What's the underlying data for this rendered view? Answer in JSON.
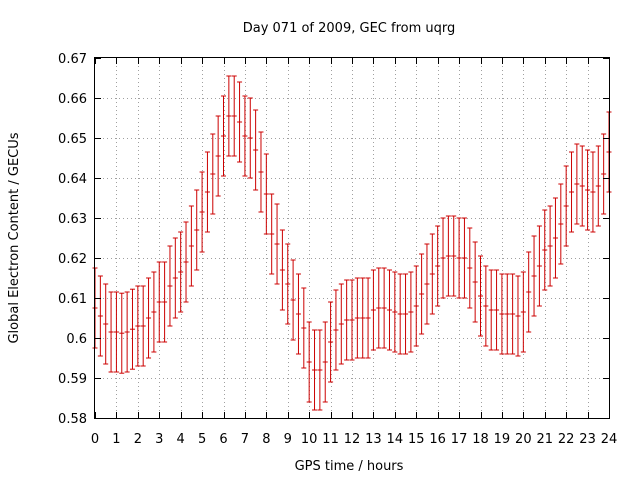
{
  "chart_data": {
    "type": "scatter",
    "title": "Day 071 of 2009, GEC from uqrg",
    "xlabel": "GPS time / hours",
    "ylabel": "Global Electron Content / GECUs",
    "xlim": [
      0,
      24
    ],
    "ylim": [
      0.58,
      0.67
    ],
    "xticks": [
      0,
      1,
      2,
      3,
      4,
      5,
      6,
      7,
      8,
      9,
      10,
      11,
      12,
      13,
      14,
      15,
      16,
      17,
      18,
      19,
      20,
      21,
      22,
      23,
      24
    ],
    "yticks": [
      0.58,
      0.59,
      0.6,
      0.61,
      0.62,
      0.63,
      0.64,
      0.65,
      0.66,
      0.67
    ],
    "ytick_labels": [
      "0.58",
      "0.59",
      "0.6",
      "0.61",
      "0.62",
      "0.63",
      "0.64",
      "0.65",
      "0.66",
      "0.67"
    ],
    "grid": true,
    "series": [
      {
        "name": "GEC",
        "color": "#cc0000",
        "error": 0.01,
        "points": [
          [
            0.0,
            0.6075
          ],
          [
            0.25,
            0.6055
          ],
          [
            0.5,
            0.6035
          ],
          [
            0.75,
            0.6015
          ],
          [
            1.0,
            0.6015
          ],
          [
            1.25,
            0.6012
          ],
          [
            1.5,
            0.6015
          ],
          [
            1.75,
            0.6022
          ],
          [
            2.0,
            0.603
          ],
          [
            2.25,
            0.603
          ],
          [
            2.5,
            0.605
          ],
          [
            2.75,
            0.6065
          ],
          [
            3.0,
            0.609
          ],
          [
            3.25,
            0.609
          ],
          [
            3.5,
            0.613
          ],
          [
            3.75,
            0.615
          ],
          [
            4.0,
            0.6165
          ],
          [
            4.25,
            0.619
          ],
          [
            4.5,
            0.623
          ],
          [
            4.75,
            0.627
          ],
          [
            5.0,
            0.6315
          ],
          [
            5.25,
            0.6365
          ],
          [
            5.5,
            0.641
          ],
          [
            5.75,
            0.6455
          ],
          [
            6.0,
            0.6505
          ],
          [
            6.25,
            0.6555
          ],
          [
            6.5,
            0.6555
          ],
          [
            6.75,
            0.654
          ],
          [
            7.0,
            0.6505
          ],
          [
            7.25,
            0.65
          ],
          [
            7.5,
            0.647
          ],
          [
            7.75,
            0.6415
          ],
          [
            8.0,
            0.636
          ],
          [
            8.25,
            0.626
          ],
          [
            8.5,
            0.6235
          ],
          [
            8.75,
            0.617
          ],
          [
            9.0,
            0.6135
          ],
          [
            9.25,
            0.6095
          ],
          [
            9.5,
            0.606
          ],
          [
            9.75,
            0.6025
          ],
          [
            10.0,
            0.594
          ],
          [
            10.25,
            0.592
          ],
          [
            10.5,
            0.592
          ],
          [
            10.75,
            0.594
          ],
          [
            11.0,
            0.599
          ],
          [
            11.25,
            0.602
          ],
          [
            11.5,
            0.6035
          ],
          [
            11.75,
            0.6045
          ],
          [
            12.0,
            0.6045
          ],
          [
            12.25,
            0.605
          ],
          [
            12.5,
            0.605
          ],
          [
            12.75,
            0.605
          ],
          [
            13.0,
            0.607
          ],
          [
            13.25,
            0.6075
          ],
          [
            13.5,
            0.6075
          ],
          [
            13.75,
            0.607
          ],
          [
            14.0,
            0.6065
          ],
          [
            14.25,
            0.606
          ],
          [
            14.5,
            0.606
          ],
          [
            14.75,
            0.6065
          ],
          [
            15.0,
            0.608
          ],
          [
            15.25,
            0.611
          ],
          [
            15.5,
            0.6135
          ],
          [
            15.75,
            0.616
          ],
          [
            16.0,
            0.618
          ],
          [
            16.25,
            0.62
          ],
          [
            16.5,
            0.6205
          ],
          [
            16.75,
            0.6205
          ],
          [
            17.0,
            0.62
          ],
          [
            17.25,
            0.62
          ],
          [
            17.5,
            0.6175
          ],
          [
            17.75,
            0.614
          ],
          [
            18.0,
            0.6105
          ],
          [
            18.25,
            0.608
          ],
          [
            18.5,
            0.607
          ],
          [
            18.75,
            0.607
          ],
          [
            19.0,
            0.606
          ],
          [
            19.25,
            0.606
          ],
          [
            19.5,
            0.606
          ],
          [
            19.75,
            0.6055
          ],
          [
            20.0,
            0.6065
          ],
          [
            20.25,
            0.6115
          ],
          [
            20.5,
            0.6155
          ],
          [
            20.75,
            0.618
          ],
          [
            21.0,
            0.622
          ],
          [
            21.25,
            0.623
          ],
          [
            21.5,
            0.625
          ],
          [
            21.75,
            0.6285
          ],
          [
            22.0,
            0.633
          ],
          [
            22.25,
            0.6365
          ],
          [
            22.5,
            0.6385
          ],
          [
            22.75,
            0.638
          ],
          [
            23.0,
            0.637
          ],
          [
            23.25,
            0.6365
          ],
          [
            23.5,
            0.638
          ],
          [
            23.75,
            0.641
          ],
          [
            24.0,
            0.6465
          ]
        ]
      }
    ]
  }
}
